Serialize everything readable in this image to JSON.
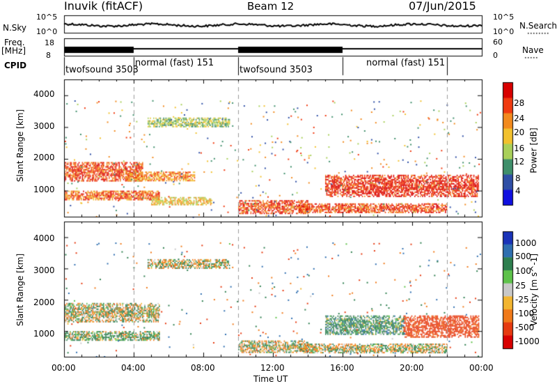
{
  "header": {
    "station": "Inuvik (fitACF)",
    "beam": "Beam 12",
    "date": "07/Jun/2015"
  },
  "aux_panels": {
    "nsky_label": "N.Sky",
    "nsky_ticks": [
      "10^5",
      "10^0"
    ],
    "nsearch_label": "N.Search",
    "nsearch_ticks": [
      "10^5",
      "10^0"
    ],
    "freq_label": "Freq.",
    "freq_unit": "[MHz]",
    "freq_ticks": [
      "18",
      "8"
    ],
    "nave_label": "Nave",
    "nave_ticks": [
      "60",
      "0"
    ],
    "cpid_label": "CPID"
  },
  "cpid_segments": [
    {
      "label": "twofsound 3503",
      "start_hr": 0,
      "end_hr": 4
    },
    {
      "label": "normal (fast) 151",
      "start_hr": 4,
      "end_hr": 10
    },
    {
      "label": "twofsound 3503",
      "start_hr": 10,
      "end_hr": 16
    },
    {
      "label": "normal (fast) 151",
      "start_hr": 16,
      "end_hr": 22
    }
  ],
  "axes": {
    "ylabel": "Slant Range [km]",
    "xlabel": "Time UT",
    "yticks": [
      "1000",
      "2000",
      "3000",
      "4000"
    ],
    "xticks": [
      "00:00",
      "04:00",
      "08:00",
      "12:00",
      "16:00",
      "20:00",
      "00:00"
    ]
  },
  "colorbars": {
    "power": {
      "label": "Power [dB]",
      "ticks": [
        "4",
        "8",
        "12",
        "16",
        "20",
        "24",
        "28"
      ],
      "colors": [
        "#1010e0",
        "#2f4fa6",
        "#3f8f6b",
        "#a9d05a",
        "#f2c12e",
        "#f28a1e",
        "#f03a10",
        "#d80000"
      ]
    },
    "velocity": {
      "label": "Velocity [m s^-1]",
      "ticks": [
        "1000",
        "500",
        "100",
        "25",
        "-25",
        "-100",
        "-500",
        "-1000"
      ],
      "colors": [
        "#1a33b8",
        "#2f6fb0",
        "#2e7f4f",
        "#5ec24a",
        "#c8c8c8",
        "#f2b531",
        "#f07a1a",
        "#e63a10",
        "#d80000"
      ]
    }
  },
  "chart_data": [
    {
      "type": "heatmap",
      "title": "Power",
      "x_range_hr": [
        0,
        24
      ],
      "y_range_km": [
        180,
        4500
      ],
      "xticks": [
        "00:00",
        "04:00",
        "08:00",
        "12:00",
        "16:00",
        "20:00",
        "00:00"
      ],
      "yticks": [
        1000,
        2000,
        3000,
        4000
      ],
      "colorbar_range_db": [
        0,
        30
      ],
      "regions": [
        {
          "t0": 0.0,
          "t1": 4.5,
          "r0": 1300,
          "r1": 1900,
          "db": 26
        },
        {
          "t0": 0.0,
          "t1": 5.5,
          "r0": 700,
          "r1": 1000,
          "db": 24
        },
        {
          "t0": 3.5,
          "t1": 7.5,
          "r0": 1300,
          "r1": 1600,
          "db": 22
        },
        {
          "t0": 5.0,
          "t1": 8.5,
          "r0": 550,
          "r1": 800,
          "db": 18
        },
        {
          "t0": 4.8,
          "t1": 9.5,
          "r0": 3000,
          "r1": 3300,
          "db": 14
        },
        {
          "t0": 10.0,
          "t1": 14.0,
          "r0": 300,
          "r1": 700,
          "db": 26
        },
        {
          "t0": 15.0,
          "t1": 23.8,
          "r0": 800,
          "r1": 1500,
          "db": 28
        },
        {
          "t0": 13.5,
          "t1": 22.0,
          "r0": 300,
          "r1": 600,
          "db": 26
        }
      ]
    },
    {
      "type": "heatmap",
      "title": "Velocity",
      "x_range_hr": [
        0,
        24
      ],
      "y_range_km": [
        180,
        4500
      ],
      "xticks": [
        "00:00",
        "04:00",
        "08:00",
        "12:00",
        "16:00",
        "20:00",
        "00:00"
      ],
      "yticks": [
        1000,
        2000,
        3000,
        4000
      ],
      "colorbar_range_ms": [
        -1000,
        1000
      ],
      "regions": [
        {
          "t0": 0.0,
          "t1": 5.5,
          "r0": 1300,
          "r1": 1900,
          "vel": 0
        },
        {
          "t0": 0.0,
          "t1": 5.5,
          "r0": 700,
          "r1": 1000,
          "vel": 80
        },
        {
          "t0": 4.8,
          "t1": 9.5,
          "r0": 3000,
          "r1": 3300,
          "vel": 0
        },
        {
          "t0": 10.0,
          "t1": 14.0,
          "r0": 300,
          "r1": 700,
          "vel": 0
        },
        {
          "t0": 15.0,
          "t1": 19.5,
          "r0": 900,
          "r1": 1500,
          "vel": 150
        },
        {
          "t0": 19.5,
          "t1": 23.8,
          "r0": 800,
          "r1": 1500,
          "vel": -450
        },
        {
          "t0": 13.5,
          "t1": 22.0,
          "r0": 300,
          "r1": 600,
          "vel": 0
        }
      ]
    }
  ]
}
